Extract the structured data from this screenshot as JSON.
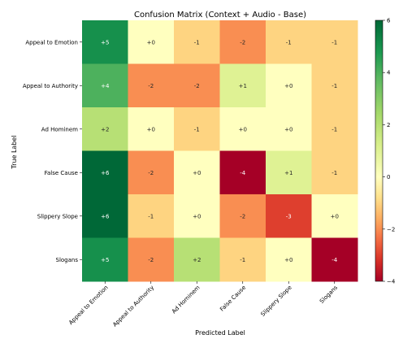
{
  "chart_data": {
    "type": "heatmap",
    "title": "Confusion Matrix (Context + Audio - Base)",
    "xlabel": "Predicted Label",
    "ylabel": "True Label",
    "row_labels": [
      "Appeal to Emotion",
      "Appeal to Authority",
      "Ad Hominem",
      "False Cause",
      "Slippery Slope",
      "Slogans"
    ],
    "col_labels": [
      "Appeal to Emotion",
      "Appeal to Authority",
      "Ad Hominem",
      "False Cause",
      "Slippery Slope",
      "Slogans"
    ],
    "values": [
      [
        5,
        0,
        -1,
        -2,
        -1,
        -1
      ],
      [
        4,
        -2,
        -2,
        1,
        0,
        -1
      ],
      [
        2,
        0,
        -1,
        0,
        0,
        -1
      ],
      [
        6,
        -2,
        0,
        -4,
        1,
        -1
      ],
      [
        6,
        -1,
        0,
        -2,
        -3,
        0
      ],
      [
        5,
        -2,
        2,
        -1,
        0,
        -4
      ]
    ],
    "cell_text": [
      [
        "+5",
        "+0",
        "-1",
        "-2",
        "-1",
        "-1"
      ],
      [
        "+4",
        "-2",
        "-2",
        "+1",
        "+0",
        "-1"
      ],
      [
        "+2",
        "+0",
        "-1",
        "+0",
        "+0",
        "-1"
      ],
      [
        "+6",
        "-2",
        "+0",
        "-4",
        "+1",
        "-1"
      ],
      [
        "+6",
        "-1",
        "+0",
        "-2",
        "-3",
        "+0"
      ],
      [
        "+5",
        "-2",
        "+2",
        "-1",
        "+0",
        "-4"
      ]
    ],
    "colorbar": {
      "min": -4,
      "max": 6,
      "center": 0,
      "colormap": "RdYlGn",
      "ticks": [
        -4,
        -2,
        0,
        2,
        4,
        6
      ],
      "tick_labels": [
        "−4",
        "−2",
        "0",
        "2",
        "4",
        "6"
      ]
    },
    "grid": false
  }
}
